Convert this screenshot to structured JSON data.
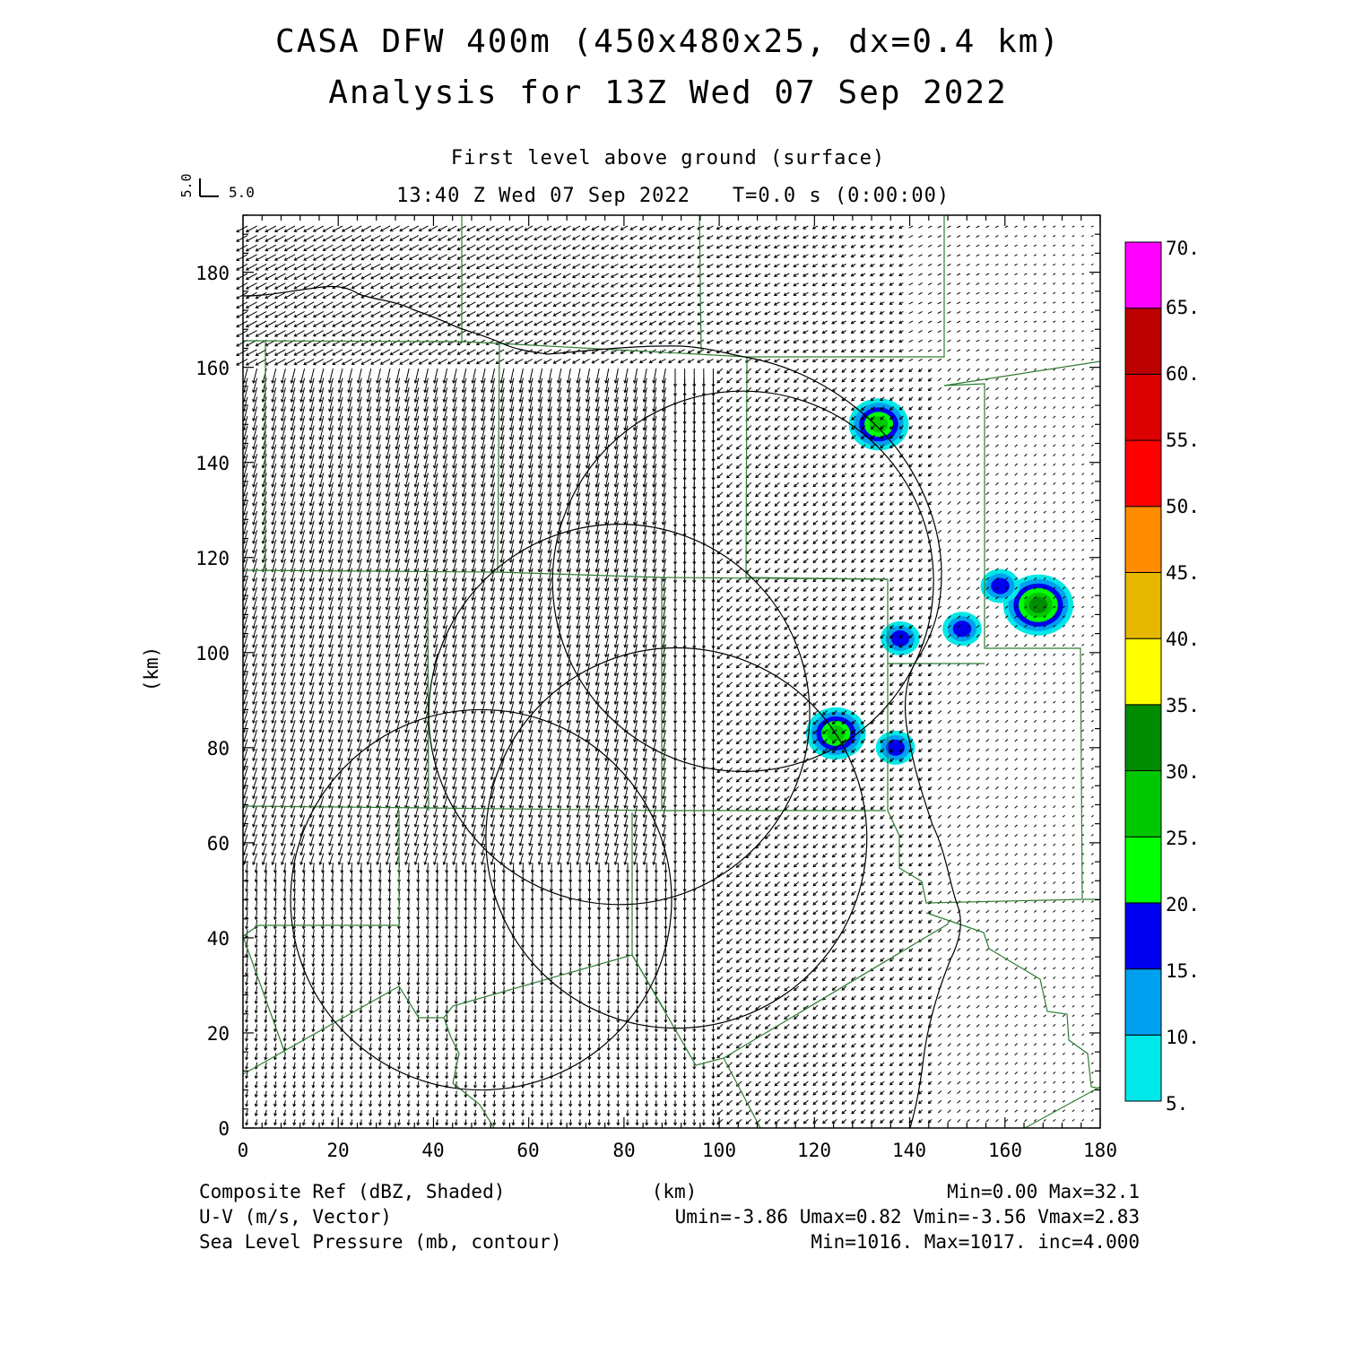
{
  "title": {
    "line1": "CASA DFW 400m (450x480x25, dx=0.4 km)",
    "line2": "Analysis for 13Z Wed 07 Sep 2022"
  },
  "subtitle": {
    "level": "First level above ground (surface)",
    "valid_time": "13:40 Z Wed 07 Sep 2022",
    "forecast_time": "T=0.0 s (0:00:00)"
  },
  "vector_key": {
    "u_label": "5.0",
    "v_label": "5.0"
  },
  "axes": {
    "x_unit": "(km)",
    "y_unit": "(km)",
    "x_ticks": [
      "0",
      "20",
      "40",
      "60",
      "80",
      "100",
      "120",
      "140",
      "160",
      "180"
    ],
    "y_ticks": [
      "0",
      "20",
      "40",
      "60",
      "80",
      "100",
      "120",
      "140",
      "160",
      "180"
    ]
  },
  "colorbar": {
    "labels": [
      "5.",
      "10.",
      "15.",
      "20.",
      "25.",
      "30.",
      "35.",
      "40.",
      "45.",
      "50.",
      "55.",
      "60.",
      "65.",
      "70."
    ],
    "colors": [
      "#00e8e8",
      "#00a0f0",
      "#0000f0",
      "#00ff00",
      "#00c800",
      "#008c00",
      "#ffff00",
      "#e6b800",
      "#ff8c00",
      "#ff0000",
      "#dd0000",
      "#bb0000",
      "#ff00ff"
    ]
  },
  "footer": {
    "field1": "Composite Ref (dBZ, Shaded)",
    "field1_stats": "Min=0.00 Max=32.1",
    "field2": "U-V (m/s, Vector)",
    "field2_stats": "Umin=-3.86 Umax=0.82 Vmin=-3.56 Vmax=2.83",
    "field3": "Sea Level Pressure (mb, contour)",
    "field3_stats": "Min=1016. Max=1017. inc=4.000"
  },
  "colors": {
    "county_lines": "#2e7d32",
    "contours": "#000000",
    "vectors": "#000000"
  },
  "map_data": {
    "radar_range_rings": [
      {
        "center_km": [
          50,
          48
        ],
        "radius_km": 40
      },
      {
        "center_km": [
          91,
          61
        ],
        "radius_km": 40
      },
      {
        "center_km": [
          79,
          87
        ],
        "radius_km": 40
      },
      {
        "center_km": [
          105,
          115
        ],
        "radius_km": 40
      }
    ],
    "reflectivity_cells_dbz": [
      {
        "center_km": [
          133.5,
          148
        ],
        "max_dbz": 28
      },
      {
        "center_km": [
          167,
          110
        ],
        "max_dbz": 32.1
      },
      {
        "center_km": [
          151,
          105
        ],
        "max_dbz": 18
      },
      {
        "center_km": [
          124.5,
          83
        ],
        "max_dbz": 26
      },
      {
        "center_km": [
          138,
          103
        ],
        "max_dbz": 17
      },
      {
        "center_km": [
          137,
          80
        ],
        "max_dbz": 16
      },
      {
        "center_km": [
          159,
          114
        ],
        "max_dbz": 16
      }
    ]
  }
}
